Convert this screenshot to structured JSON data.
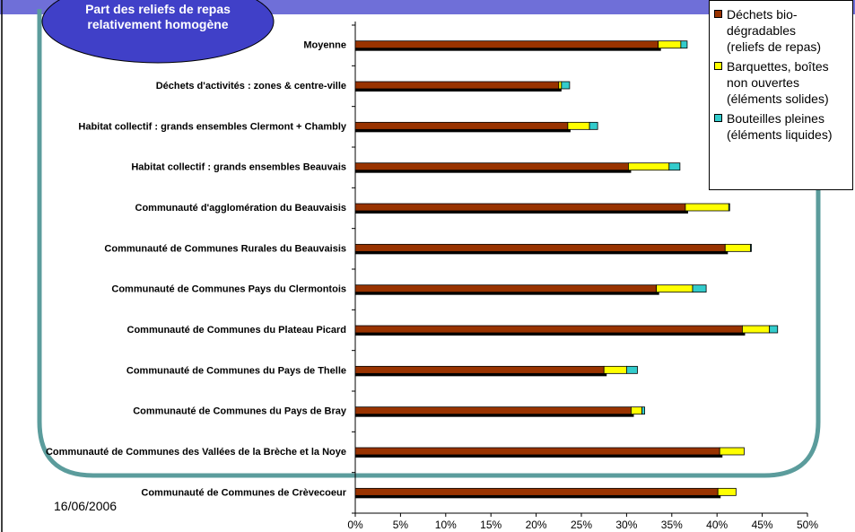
{
  "callout": {
    "line1": "Part des reliefs de repas",
    "line2": "relativement homogène"
  },
  "date": "16/06/2006",
  "legend": {
    "items": [
      {
        "lines": [
          "Déchets bio-",
          "dégradables",
          "(reliefs de repas)"
        ],
        "color": "#993300"
      },
      {
        "lines": [
          "Barquettes, boîtes",
          "non ouvertes",
          "(éléments solides)"
        ],
        "color": "#ffff00"
      },
      {
        "lines": [
          "Bouteilles pleines",
          "(éléments liquides)"
        ],
        "color": "#33cccc"
      }
    ]
  },
  "chart_data": {
    "type": "bar",
    "orientation": "horizontal",
    "stacked": true,
    "categories": [
      "Moyenne",
      "Déchets d'activités : zones & centre-ville",
      "Habitat collectif : grands ensembles Clermont + Chambly",
      "Habitat collectif : grands ensembles Beauvais",
      "Communauté d'agglomération du Beauvaisis",
      "Communauté de Communes Rurales du Beauvaisis",
      "Communauté de Communes Pays du Clermontois",
      "Communauté de Communes du Plateau Picard",
      "Communauté de Communes du Pays de Thelle",
      "Communauté de Communes du Pays de Bray",
      "Communauté de Communes des Vallées de la Brèche et la Noye",
      "Communauté de Communes de Crèvecoeur"
    ],
    "series": [
      {
        "name": "Déchets bio-dégradables (reliefs de repas)",
        "color": "#993300",
        "values": [
          33.5,
          22.5,
          23.5,
          30.2,
          36.5,
          40.9,
          33.3,
          42.8,
          27.5,
          30.5,
          40.3,
          40.1
        ]
      },
      {
        "name": "Barquettes, boîtes non ouvertes (éléments solides)",
        "color": "#ffff00",
        "values": [
          2.5,
          0.3,
          2.4,
          4.5,
          4.8,
          2.8,
          4.0,
          3.0,
          2.5,
          1.2,
          2.7,
          2.0
        ]
      },
      {
        "name": "Bouteilles pleines (éléments liquides)",
        "color": "#33cccc",
        "values": [
          0.7,
          0.9,
          0.9,
          1.2,
          0.1,
          0.1,
          1.5,
          0.9,
          1.2,
          0.3,
          0.0,
          0.0
        ]
      }
    ],
    "xlim": [
      0,
      50
    ],
    "xticks": [
      "0%",
      "5%",
      "10%",
      "15%",
      "20%",
      "25%",
      "30%",
      "35%",
      "40%",
      "45%",
      "50%"
    ]
  }
}
